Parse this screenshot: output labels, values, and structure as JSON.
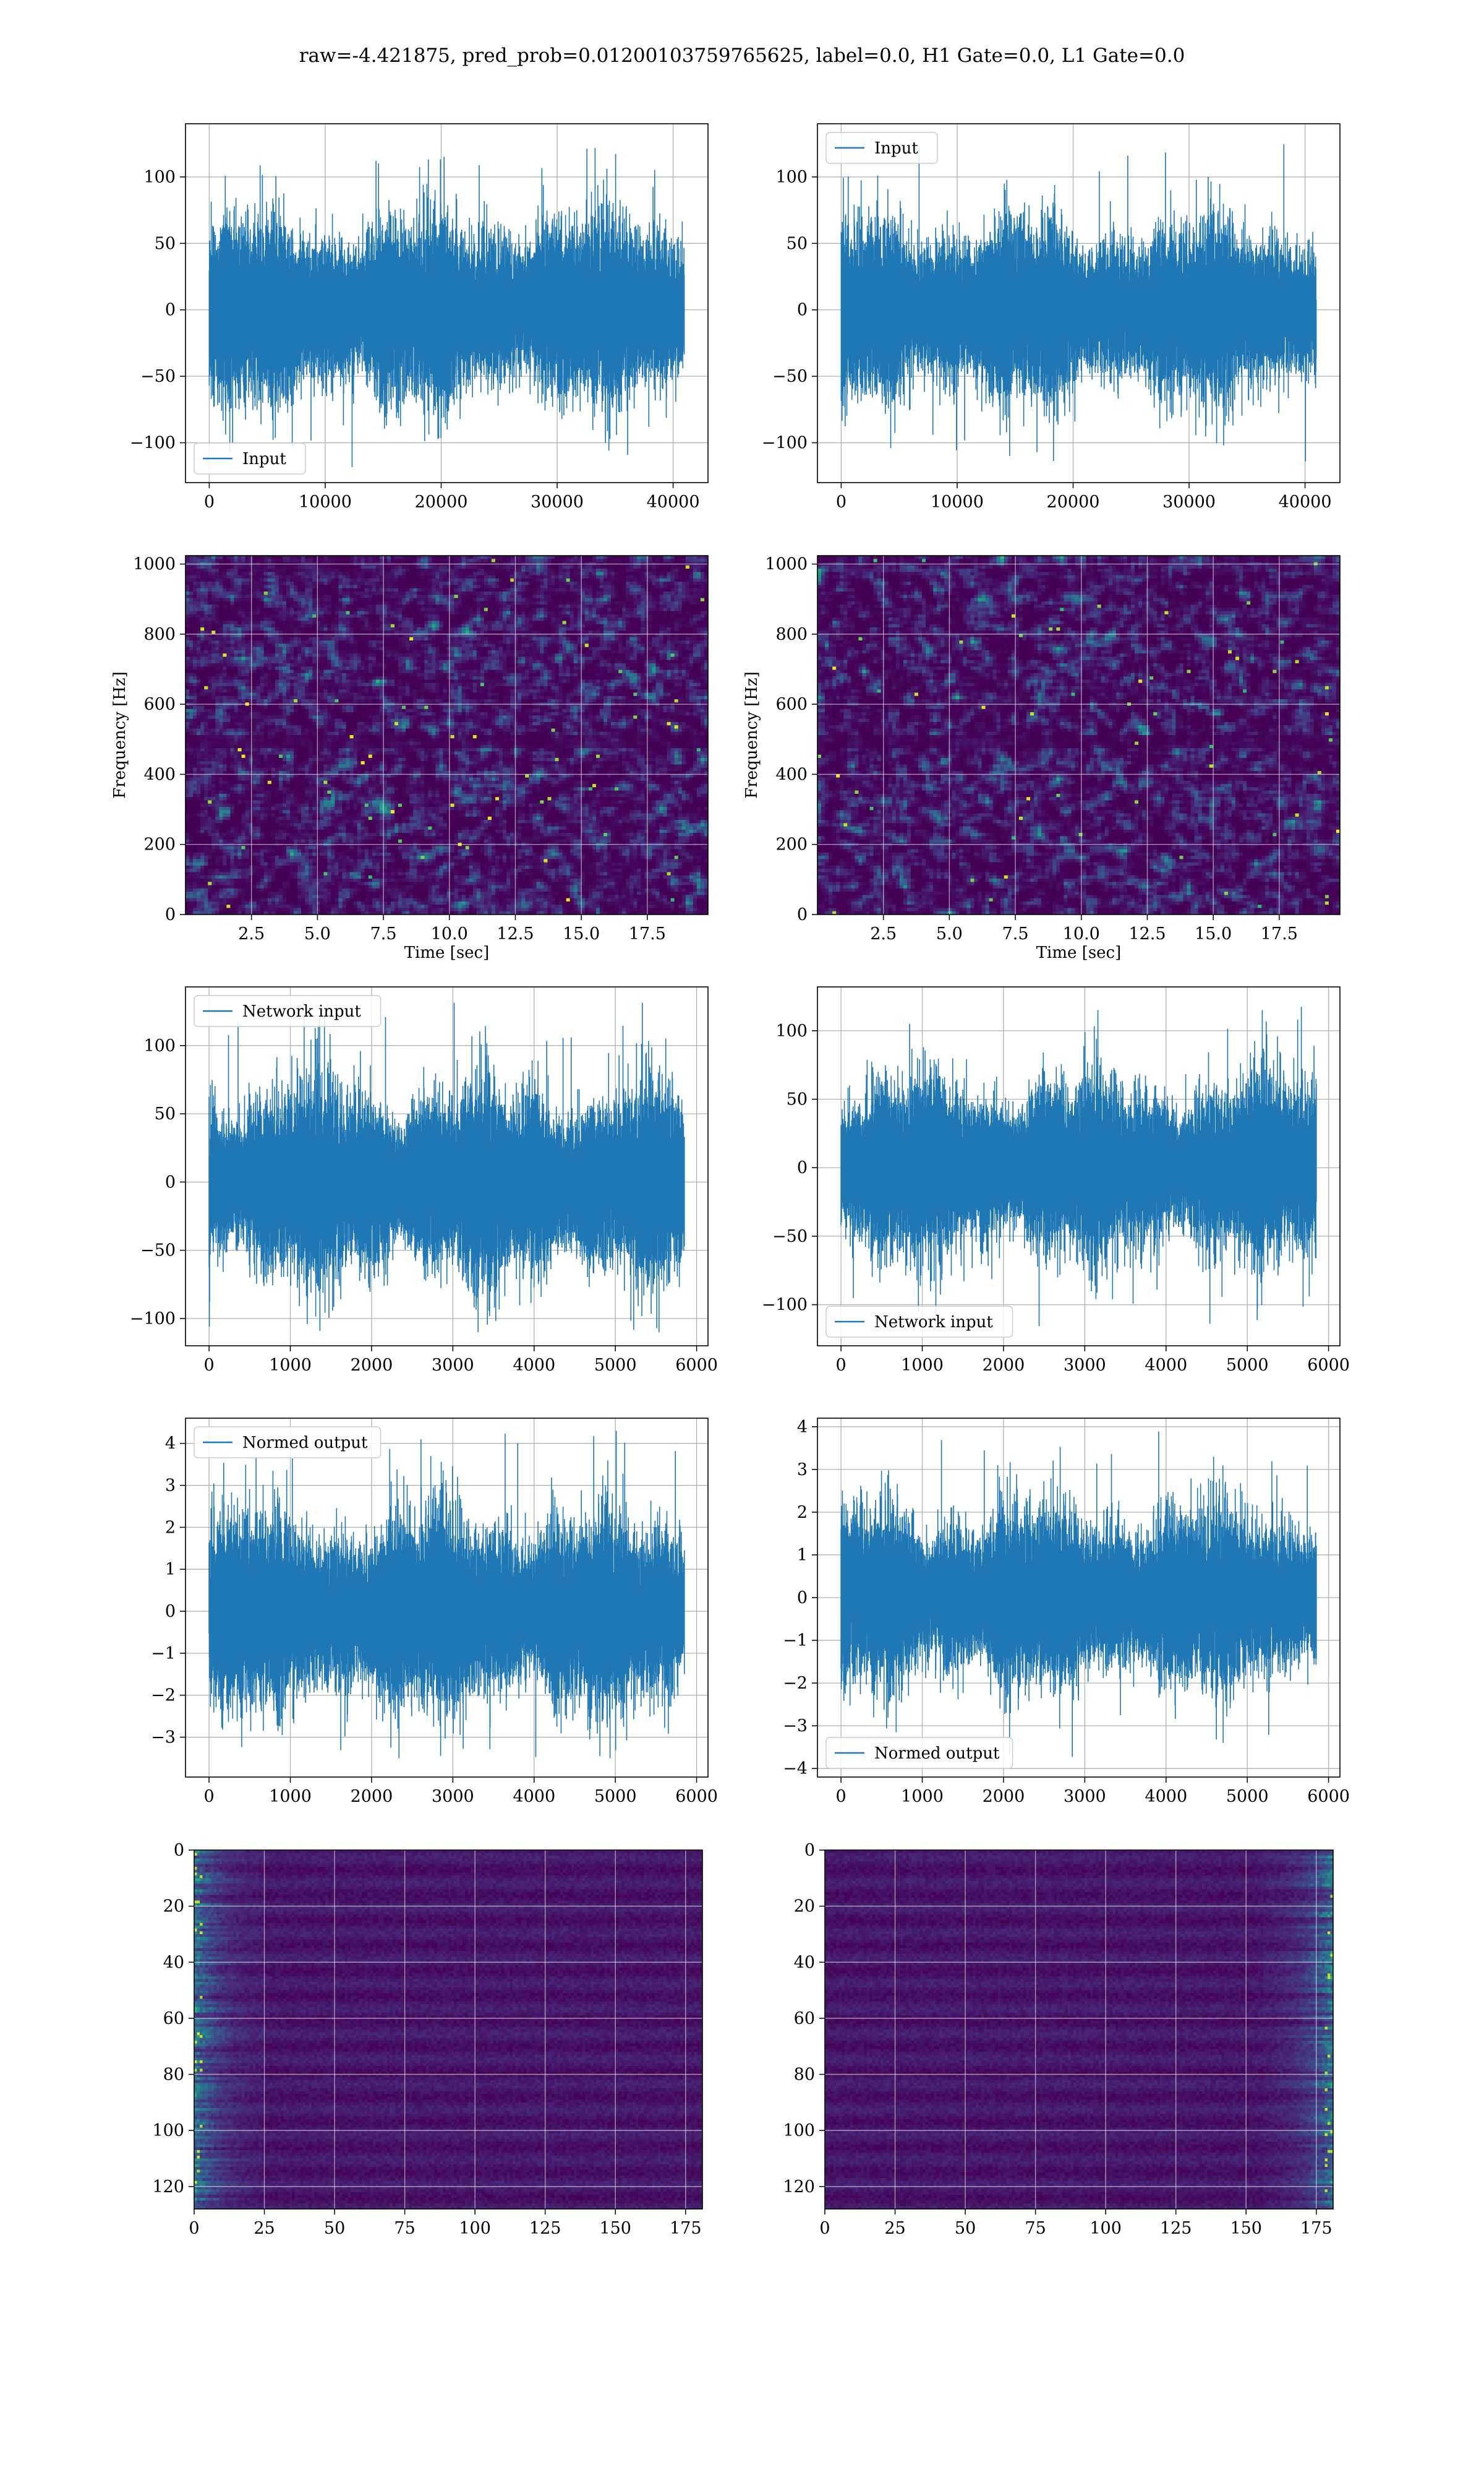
{
  "figure": {
    "suptitle": "raw=-4.421875, pred_prob=0.01200103759765625, label=0.0, H1 Gate=0.0, L1 Gate=0.0"
  },
  "colors": {
    "line": "#1f77b4",
    "legend_edge": "#cccccc"
  },
  "chart_data": [
    {
      "id": "input-h1",
      "type": "line",
      "title": "",
      "series": [
        {
          "name": "Input",
          "n": 40960,
          "envelope": [
            -125,
            130
          ]
        }
      ],
      "xlim": [
        -2048,
        43008
      ],
      "ylim": [
        -130,
        140
      ],
      "xticks": [
        0,
        10000,
        20000,
        30000,
        40000
      ],
      "xtick_labels": [
        "0",
        "10000",
        "20000",
        "30000",
        "40000"
      ],
      "yticks": [
        -100,
        -50,
        0,
        50,
        100
      ],
      "ytick_labels": [
        "−100",
        "−50",
        "0",
        "50",
        "100"
      ],
      "xlabel": "",
      "ylabel": "",
      "legend": "lower-left",
      "grid": true
    },
    {
      "id": "input-l1",
      "type": "line",
      "title": "",
      "series": [
        {
          "name": "Input",
          "n": 40960,
          "envelope": [
            -115,
            125
          ]
        }
      ],
      "xlim": [
        -2048,
        43008
      ],
      "ylim": [
        -130,
        140
      ],
      "xticks": [
        0,
        10000,
        20000,
        30000,
        40000
      ],
      "xtick_labels": [
        "0",
        "10000",
        "20000",
        "30000",
        "40000"
      ],
      "yticks": [
        -100,
        -50,
        0,
        50,
        100
      ],
      "ytick_labels": [
        "−100",
        "−50",
        "0",
        "50",
        "100"
      ],
      "xlabel": "",
      "ylabel": "",
      "legend": "upper-left",
      "grid": true
    },
    {
      "id": "spec-h1",
      "type": "heatmap",
      "title": "",
      "xlim": [
        0,
        19.8
      ],
      "ylim": [
        0,
        1024
      ],
      "xticks": [
        2.5,
        5.0,
        7.5,
        10.0,
        12.5,
        15.0,
        17.5
      ],
      "xtick_labels": [
        "2.5",
        "5.0",
        "7.5",
        "10.0",
        "12.5",
        "15.0",
        "17.5"
      ],
      "yticks": [
        0,
        200,
        400,
        600,
        800,
        1000
      ],
      "ytick_labels": [
        "0",
        "200",
        "400",
        "600",
        "800",
        "1000"
      ],
      "xlabel": "Time [sec]",
      "ylabel": "Frequency [Hz]",
      "colormap": "viridis",
      "grid": true
    },
    {
      "id": "spec-l1",
      "type": "heatmap",
      "title": "",
      "xlim": [
        0,
        19.8
      ],
      "ylim": [
        0,
        1024
      ],
      "xticks": [
        2.5,
        5.0,
        7.5,
        10.0,
        12.5,
        15.0,
        17.5
      ],
      "xtick_labels": [
        "2.5",
        "5.0",
        "7.5",
        "10.0",
        "12.5",
        "15.0",
        "17.5"
      ],
      "yticks": [
        0,
        200,
        400,
        600,
        800,
        1000
      ],
      "ytick_labels": [
        "0",
        "200",
        "400",
        "600",
        "800",
        "1000"
      ],
      "xlabel": "Time [sec]",
      "ylabel": "Frequency [Hz]",
      "colormap": "viridis",
      "grid": true
    },
    {
      "id": "net-h1",
      "type": "line",
      "title": "",
      "series": [
        {
          "name": "Network input",
          "n": 5850,
          "envelope": [
            -110,
            132
          ]
        }
      ],
      "xlim": [
        -290,
        6140
      ],
      "ylim": [
        -120,
        143
      ],
      "xticks": [
        0,
        1000,
        2000,
        3000,
        4000,
        5000,
        6000
      ],
      "xtick_labels": [
        "0",
        "1000",
        "2000",
        "3000",
        "4000",
        "5000",
        "6000"
      ],
      "yticks": [
        -100,
        -50,
        0,
        50,
        100
      ],
      "ytick_labels": [
        "−100",
        "−50",
        "0",
        "50",
        "100"
      ],
      "xlabel": "",
      "ylabel": "",
      "legend": "upper-left",
      "grid": true
    },
    {
      "id": "net-l1",
      "type": "line",
      "title": "",
      "series": [
        {
          "name": "Network input",
          "n": 5850,
          "envelope": [
            -118,
            122
          ]
        }
      ],
      "xlim": [
        -290,
        6140
      ],
      "ylim": [
        -130,
        132
      ],
      "xticks": [
        0,
        1000,
        2000,
        3000,
        4000,
        5000,
        6000
      ],
      "xtick_labels": [
        "0",
        "1000",
        "2000",
        "3000",
        "4000",
        "5000",
        "6000"
      ],
      "yticks": [
        -100,
        -50,
        0,
        50,
        100
      ],
      "ytick_labels": [
        "−100",
        "−50",
        "0",
        "50",
        "100"
      ],
      "xlabel": "",
      "ylabel": "",
      "legend": "lower-left",
      "grid": true
    },
    {
      "id": "norm-h1",
      "type": "line",
      "title": "",
      "series": [
        {
          "name": "Normed output",
          "n": 5850,
          "envelope": [
            -3.5,
            4.3
          ]
        }
      ],
      "xlim": [
        -290,
        6140
      ],
      "ylim": [
        -3.95,
        4.6
      ],
      "xticks": [
        0,
        1000,
        2000,
        3000,
        4000,
        5000,
        6000
      ],
      "xtick_labels": [
        "0",
        "1000",
        "2000",
        "3000",
        "4000",
        "5000",
        "6000"
      ],
      "yticks": [
        -3,
        -2,
        -1,
        0,
        1,
        2,
        3,
        4
      ],
      "ytick_labels": [
        "−3",
        "−2",
        "−1",
        "0",
        "1",
        "2",
        "3",
        "4"
      ],
      "xlabel": "",
      "ylabel": "",
      "legend": "upper-left",
      "grid": true
    },
    {
      "id": "norm-l1",
      "type": "line",
      "title": "",
      "series": [
        {
          "name": "Normed output",
          "n": 5850,
          "envelope": [
            -3.8,
            3.9
          ]
        }
      ],
      "xlim": [
        -290,
        6140
      ],
      "ylim": [
        -4.2,
        4.2
      ],
      "xticks": [
        0,
        1000,
        2000,
        3000,
        4000,
        5000,
        6000
      ],
      "xtick_labels": [
        "0",
        "1000",
        "2000",
        "3000",
        "4000",
        "5000",
        "6000"
      ],
      "yticks": [
        -4,
        -3,
        -2,
        -1,
        0,
        1,
        2,
        3,
        4
      ],
      "ytick_labels": [
        "−4",
        "−3",
        "−2",
        "−1",
        "0",
        "1",
        "2",
        "3",
        "4"
      ],
      "xlabel": "",
      "ylabel": "",
      "legend": "lower-left",
      "grid": true
    },
    {
      "id": "feat-h1",
      "type": "heatmap",
      "title": "",
      "xlim": [
        0,
        181
      ],
      "ylim": [
        128,
        0
      ],
      "xticks": [
        0,
        25,
        50,
        75,
        100,
        125,
        150,
        175
      ],
      "xtick_labels": [
        "0",
        "25",
        "50",
        "75",
        "100",
        "125",
        "150",
        "175"
      ],
      "yticks": [
        0,
        20,
        40,
        60,
        80,
        100,
        120
      ],
      "ytick_labels": [
        "0",
        "20",
        "40",
        "60",
        "80",
        "100",
        "120"
      ],
      "xlabel": "",
      "ylabel": "",
      "colormap": "viridis",
      "grid": true,
      "bright_side": "left"
    },
    {
      "id": "feat-l1",
      "type": "heatmap",
      "title": "",
      "xlim": [
        0,
        181
      ],
      "ylim": [
        128,
        0
      ],
      "xticks": [
        0,
        25,
        50,
        75,
        100,
        125,
        150,
        175
      ],
      "xtick_labels": [
        "0",
        "25",
        "50",
        "75",
        "100",
        "125",
        "150",
        "175"
      ],
      "yticks": [
        0,
        20,
        40,
        60,
        80,
        100,
        120
      ],
      "ytick_labels": [
        "0",
        "20",
        "40",
        "60",
        "80",
        "100",
        "120"
      ],
      "xlabel": "",
      "ylabel": "",
      "colormap": "viridis",
      "grid": true,
      "bright_side": "right"
    }
  ]
}
